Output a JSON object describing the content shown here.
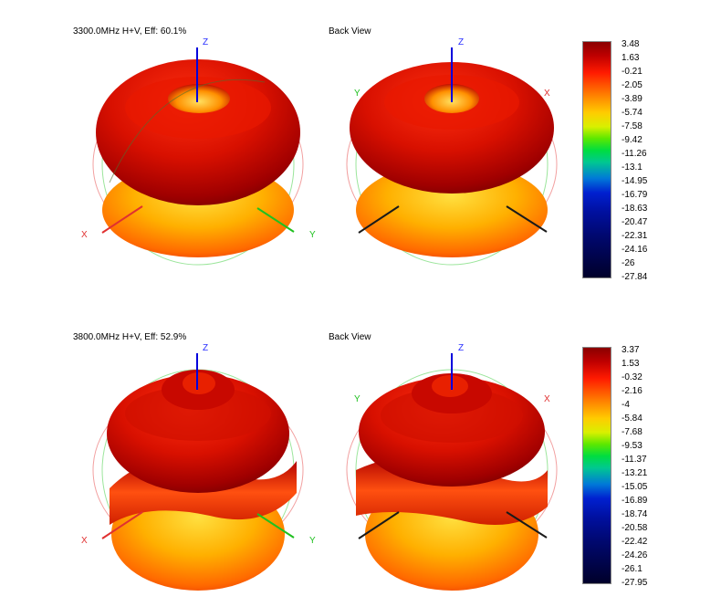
{
  "panels": [
    {
      "title": "3300.0MHz H+V, Eff: 60.1%",
      "back_label": "Back View",
      "axes": {
        "x": "X",
        "y": "Y",
        "z": "Z"
      },
      "scale": [
        "3.48",
        "1.63",
        "-0.21",
        "-2.05",
        "-3.89",
        "-5.74",
        "-7.58",
        "-9.42",
        "-11.26",
        "-13.1",
        "-14.95",
        "-16.79",
        "-18.63",
        "-20.47",
        "-22.31",
        "-24.16",
        "-26",
        "-27.84"
      ]
    },
    {
      "title": "3800.0MHz H+V, Eff: 52.9%",
      "back_label": "Back View",
      "axes": {
        "x": "X",
        "y": "Y",
        "z": "Z"
      },
      "scale": [
        "3.37",
        "1.53",
        "-0.32",
        "-2.16",
        "-4",
        "-5.84",
        "-7.68",
        "-9.53",
        "-11.37",
        "-13.21",
        "-15.05",
        "-16.89",
        "-18.74",
        "-20.58",
        "-22.42",
        "-24.26",
        "-26.1",
        "-27.95"
      ]
    }
  ],
  "colors": {
    "dark_red": "#8b0000",
    "red": "#e01000",
    "orange": "#ff8000",
    "yellow": "#ffd000",
    "x_axis": "#e03030",
    "y_axis": "#20c020",
    "z_axis": "#0000dd"
  }
}
